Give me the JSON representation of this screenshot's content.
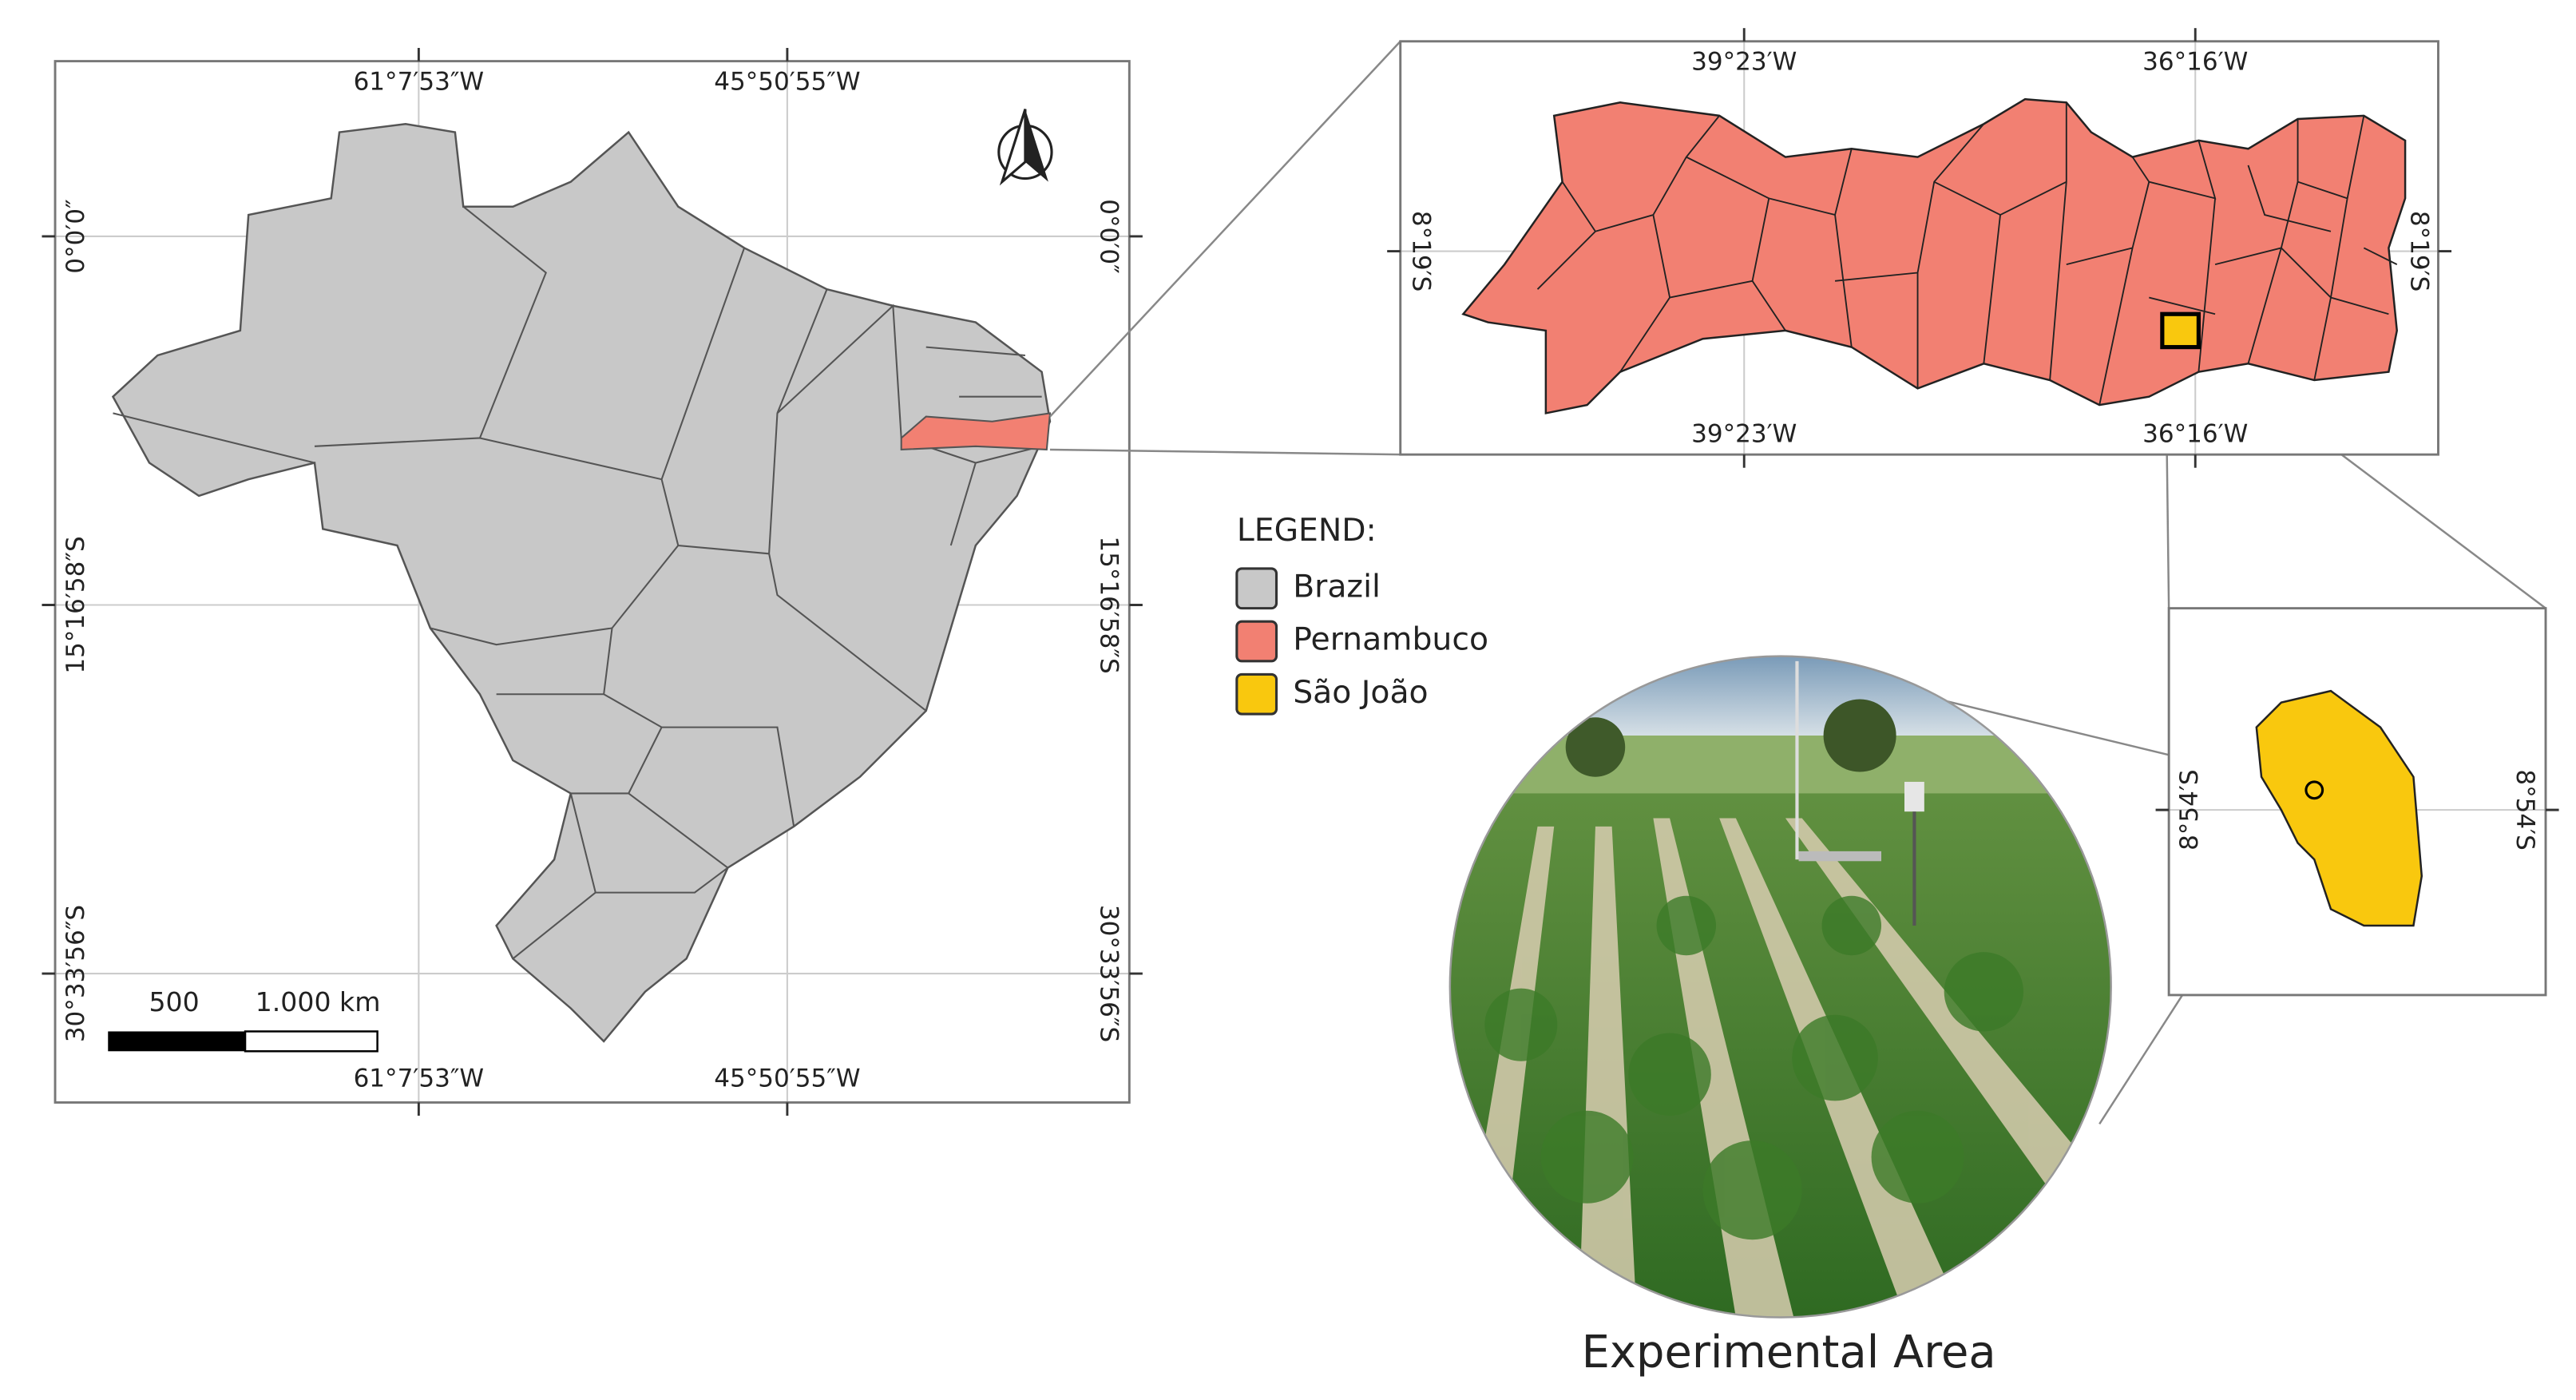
{
  "main_map": {
    "top_labels": [
      "61°7′53″W",
      "45°50′55″W"
    ],
    "bottom_labels": [
      "61°7′53″W",
      "45°50′55″W"
    ],
    "left_labels": [
      "0°0′0″",
      "15°16′58″S",
      "30°33′56″S"
    ],
    "right_labels": [
      "0°0′0″",
      "15°16′58″S",
      "30°33′56″S"
    ],
    "scale_bar": [
      "500",
      "1.000 km"
    ]
  },
  "state_map": {
    "top_labels": [
      "39°23′W",
      "36°16′W"
    ],
    "bottom_labels": [
      "39°23′W",
      "36°16′W"
    ],
    "left_label": "8°19′S",
    "right_label": "8°19′S"
  },
  "municipality_map": {
    "left_label": "8°54′S",
    "right_label": "8°54′S"
  },
  "legend": {
    "title": "LEGEND:",
    "items": [
      "Brazil",
      "Pernambuco",
      "São João"
    ]
  },
  "photo": {
    "caption": "Experimental Area"
  }
}
